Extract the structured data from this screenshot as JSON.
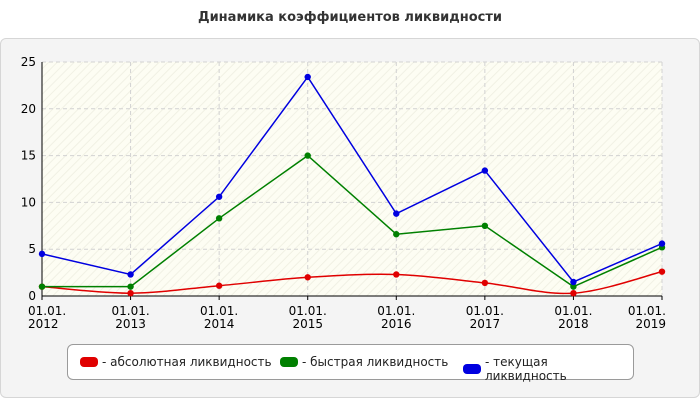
{
  "chart_data": {
    "type": "line",
    "title": "Динамика коэффициентов ликвидности",
    "categories": [
      [
        "01.01.",
        "2012"
      ],
      [
        "01.01.",
        "2013"
      ],
      [
        "01.01.",
        "2014"
      ],
      [
        "01.01.",
        "2015"
      ],
      [
        "01.01.",
        "2016"
      ],
      [
        "01.01.",
        "2017"
      ],
      [
        "01.01.",
        "2018"
      ],
      [
        "01.01.",
        "2019"
      ]
    ],
    "ylim": [
      0,
      25
    ],
    "yticks": [
      0,
      5,
      10,
      15,
      20,
      25
    ],
    "grid": true,
    "legend_position": "bottom",
    "series": [
      {
        "name": "- абсолютная ликвидность",
        "color": "#e00000",
        "values": [
          1.0,
          0.3,
          1.1,
          2.0,
          2.3,
          1.4,
          0.3,
          2.6
        ]
      },
      {
        "name": "- быстрая ликвидность",
        "color": "#008000",
        "values": [
          1.0,
          1.0,
          8.3,
          15.0,
          6.6,
          7.5,
          1.0,
          5.2
        ]
      },
      {
        "name": "- текущая ликвидность",
        "color": "#0000e0",
        "values": [
          4.5,
          2.3,
          10.6,
          23.4,
          8.8,
          13.4,
          1.5,
          5.6
        ]
      }
    ]
  }
}
